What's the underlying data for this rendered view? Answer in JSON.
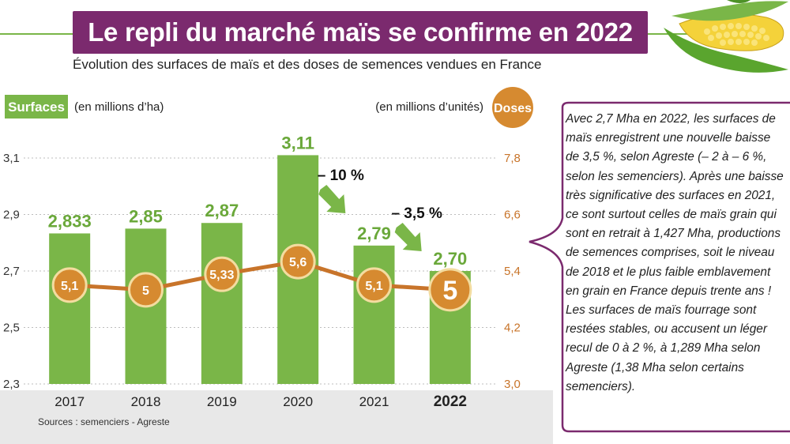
{
  "title": "Le repli du marché maïs se confirme en 2022",
  "subtitle": "Évolution des surfaces de maïs et des doses de semences vendues en France",
  "body_text": "Avec 2,7 Mha en 2022, les surfaces de maïs enregistrent une nouvelle baisse de 3,5 %, selon Agreste (– 2 à – 6 %, selon les semenciers). Après une baisse très significative des surfaces en 2021, ce sont surtout celles de maïs grain qui sont en retrait à 1,427 Mha, productions de semences comprises, soit le niveau de 2018 et le plus faible emblavement en grain en France depuis trente ans ! Les surfaces de maïs fourrage sont restées stables, ou accusent un léger recul de 0 à 2 %, à 1,289 Mha selon Agreste (1,38 Mha selon certains semenciers).",
  "sources": "Sources : semenciers - Agreste",
  "colors": {
    "title_bg": "#7b2a6e",
    "bar": "#7ab648",
    "bar_label": "#6aa83a",
    "line": "#c8742a",
    "dot_fill": "#d68a30",
    "dot_ring": "#f3dca0",
    "right_axis": "#c8742a",
    "bubble_border": "#7b2a6e",
    "plot_bg_bottom": "#e8e8e8"
  },
  "chart_data": {
    "type": "bar",
    "categories": [
      "2017",
      "2018",
      "2019",
      "2020",
      "2021",
      "2022"
    ],
    "highlight_category": "2022",
    "left_axis": {
      "badge": "Surfaces",
      "unit": "(en millions d’ha)",
      "ylim": [
        2.3,
        3.1
      ],
      "ticks": [
        "2,3",
        "2,5",
        "2,7",
        "2,9",
        "3,1"
      ]
    },
    "right_axis": {
      "badge": "Doses",
      "unit": "(en millions d’unités)",
      "ylim": [
        3.0,
        7.8
      ],
      "ticks": [
        "3,0",
        "4,2",
        "5,4",
        "6,6",
        "7,8"
      ]
    },
    "series": [
      {
        "name": "Surfaces",
        "kind": "bar",
        "axis": "left",
        "values": [
          2.833,
          2.85,
          2.87,
          3.11,
          2.79,
          2.7
        ],
        "labels": [
          "2,833",
          "2,85",
          "2,87",
          "3,11",
          "2,79",
          "2,70"
        ]
      },
      {
        "name": "Doses",
        "kind": "line",
        "axis": "right",
        "values": [
          5.1,
          5.0,
          5.33,
          5.6,
          5.1,
          5.0
        ],
        "labels": [
          "5,1",
          "5",
          "5,33",
          "5,6",
          "5,1",
          "5"
        ]
      }
    ],
    "annotations": [
      {
        "text": "– 10 %",
        "between": [
          "2020",
          "2021"
        ]
      },
      {
        "text": "– 3,5 %",
        "between": [
          "2021",
          "2022"
        ]
      }
    ]
  }
}
